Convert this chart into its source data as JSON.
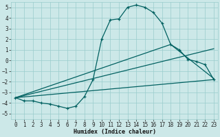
{
  "xlabel": "Humidex (Indice chaleur)",
  "xlim": [
    -0.5,
    23.5
  ],
  "ylim": [
    -5.5,
    5.5
  ],
  "xticks": [
    0,
    1,
    2,
    3,
    4,
    5,
    6,
    7,
    8,
    9,
    10,
    11,
    12,
    13,
    14,
    15,
    16,
    17,
    18,
    19,
    20,
    21,
    22,
    23
  ],
  "yticks": [
    -5,
    -4,
    -3,
    -2,
    -1,
    0,
    1,
    2,
    3,
    4,
    5
  ],
  "bg_color": "#cce8e8",
  "grid_color": "#99cccc",
  "line_color": "#006060",
  "main_x": [
    0,
    1,
    2,
    3,
    4,
    5,
    6,
    7,
    8,
    9,
    10,
    11,
    12,
    13,
    14,
    15,
    16,
    17,
    18,
    19,
    20,
    21,
    22,
    23
  ],
  "main_y": [
    -3.5,
    -3.8,
    -3.8,
    -4.0,
    -4.1,
    -4.3,
    -4.5,
    -4.3,
    -3.4,
    -1.8,
    2.0,
    3.8,
    3.9,
    5.0,
    5.2,
    5.0,
    4.5,
    3.5,
    1.5,
    1.0,
    0.1,
    -0.1,
    -0.4,
    -1.8
  ],
  "line1_x": [
    0,
    23
  ],
  "line1_y": [
    -3.5,
    -1.8
  ],
  "line2_x": [
    0,
    23
  ],
  "line2_y": [
    -3.5,
    1.1
  ],
  "line3_x": [
    0,
    18,
    23
  ],
  "line3_y": [
    -3.5,
    1.5,
    -1.7
  ],
  "xlabel_fontsize": 6.0,
  "tick_fontsize": 5.5
}
